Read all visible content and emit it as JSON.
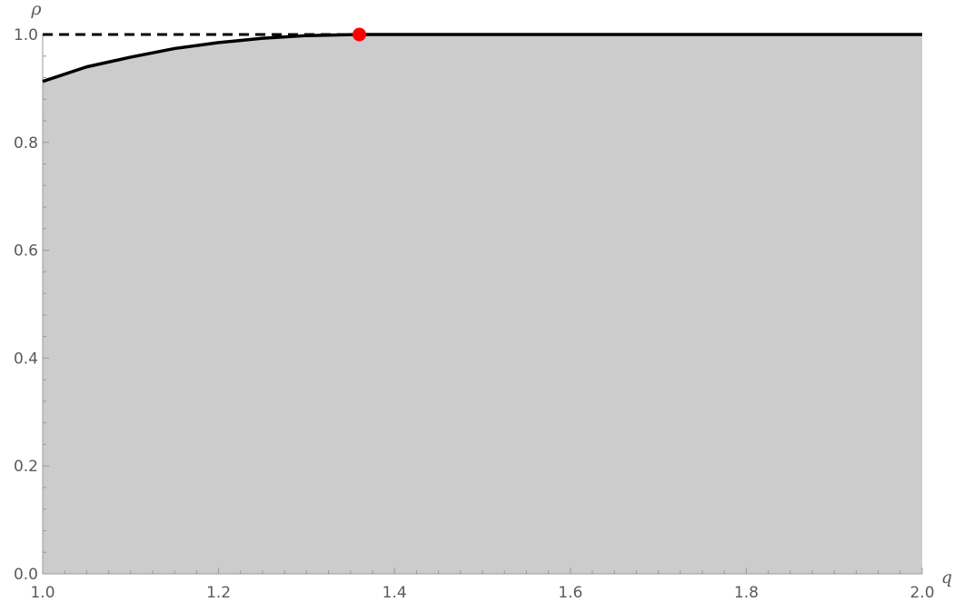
{
  "chart_data": {
    "type": "area",
    "xlabel": "q",
    "ylabel": "ρ",
    "xlim": [
      1.0,
      2.0
    ],
    "ylim": [
      0.0,
      1.0
    ],
    "x_ticks": [
      "1.0",
      "1.2",
      "1.4",
      "1.6",
      "1.8",
      "2.0"
    ],
    "y_ticks": [
      "0.0",
      "0.2",
      "0.4",
      "0.6",
      "0.8",
      "1.0"
    ],
    "grid": false,
    "series": [
      {
        "kind": "filled-curve",
        "x": [
          1.0,
          1.05,
          1.1,
          1.15,
          1.2,
          1.25,
          1.3,
          1.36,
          1.5,
          2.0
        ],
        "y": [
          0.913,
          0.94,
          0.958,
          0.974,
          0.985,
          0.993,
          0.998,
          1.0,
          1.0,
          1.0
        ]
      },
      {
        "kind": "reference-line",
        "style": "dashed",
        "x": [
          1.0,
          1.36
        ],
        "y": [
          1.0,
          1.0
        ]
      }
    ],
    "markers": [
      {
        "x": 1.36,
        "y": 1.0
      }
    ],
    "colors": {
      "fill": "#cccccc",
      "curve": "#000000",
      "marker": "#ff0000",
      "axis": "#9a9a9a",
      "tick_text": "#5a5a5a"
    }
  }
}
